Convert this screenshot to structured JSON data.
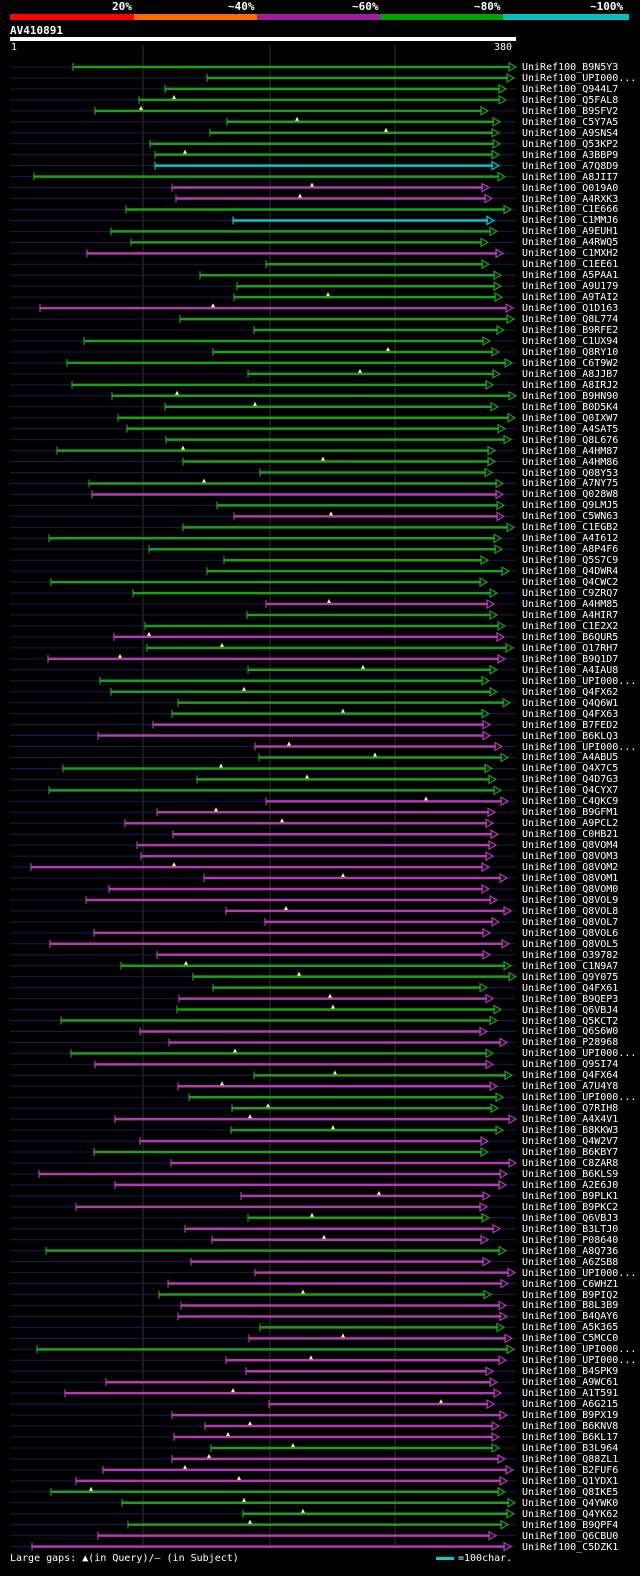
{
  "legend": {
    "labels": [
      "20%",
      "~40%",
      "~60%",
      "~80%",
      "~100%"
    ],
    "colors": [
      "#ff0000",
      "#ff6a00",
      "#9b1e9b",
      "#00a000",
      "#00c0c0"
    ]
  },
  "query": {
    "id": "AV410891",
    "start_label": "1",
    "end_label": "380"
  },
  "footer": {
    "gaps_text": "Large gaps: ▲(in Query)/— (in Subject)",
    "scale_text": "=100char."
  },
  "colors": {
    "green": "#1e9e1e",
    "purple": "#b03cb0",
    "cyan": "#00c8d0",
    "grid": "#555555"
  },
  "hits": [
    {
      "label": "UniRef100_B9N5Y3",
      "c": "g"
    },
    {
      "label": "UniRef100_UPI000...",
      "c": "g"
    },
    {
      "label": "UniRef100_Q944L7",
      "c": "g"
    },
    {
      "label": "UniRef100_Q5FAL8",
      "c": "g"
    },
    {
      "label": "UniRef100_B9SFV2",
      "c": "g"
    },
    {
      "label": "UniRef100_C5Y7A5",
      "c": "g"
    },
    {
      "label": "UniRef100_A9SNS4",
      "c": "g"
    },
    {
      "label": "UniRef100_Q53KP2",
      "c": "g"
    },
    {
      "label": "UniRef100_A3BBP9",
      "c": "g"
    },
    {
      "label": "UniRef100_A7Q8D9",
      "c": "c"
    },
    {
      "label": "UniRef100_A8JII7",
      "c": "g"
    },
    {
      "label": "UniRef100_Q019A0",
      "c": "p"
    },
    {
      "label": "UniRef100_A4RXK3",
      "c": "p"
    },
    {
      "label": "UniRef100_C1E666",
      "c": "g"
    },
    {
      "label": "UniRef100_C1MMJ6",
      "c": "c"
    },
    {
      "label": "UniRef100_A9EUH1",
      "c": "g"
    },
    {
      "label": "UniRef100_A4RWQ5",
      "c": "g"
    },
    {
      "label": "UniRef100_C1MXH2",
      "c": "p"
    },
    {
      "label": "UniRef100_C1EE61",
      "c": "g"
    },
    {
      "label": "UniRef100_A5PAA1",
      "c": "g"
    },
    {
      "label": "UniRef100_A9U179",
      "c": "g"
    },
    {
      "label": "UniRef100_A9TAI2",
      "c": "g"
    },
    {
      "label": "UniRef100_Q1D163",
      "c": "p"
    },
    {
      "label": "UniRef100_Q8L774",
      "c": "g"
    },
    {
      "label": "UniRef100_B9RFE2",
      "c": "g"
    },
    {
      "label": "UniRef100_C1UX94",
      "c": "g"
    },
    {
      "label": "UniRef100_Q8RY10",
      "c": "g"
    },
    {
      "label": "UniRef100_C6T9W2",
      "c": "g"
    },
    {
      "label": "UniRef100_A8JJB7",
      "c": "g"
    },
    {
      "label": "UniRef100_A8IRJ2",
      "c": "g"
    },
    {
      "label": "UniRef100_B9HN90",
      "c": "g"
    },
    {
      "label": "UniRef100_B0D5K4",
      "c": "g"
    },
    {
      "label": "UniRef100_Q0IXW7",
      "c": "g"
    },
    {
      "label": "UniRef100_A4SAT5",
      "c": "g"
    },
    {
      "label": "UniRef100_Q8L676",
      "c": "g"
    },
    {
      "label": "UniRef100_A4HM87",
      "c": "g"
    },
    {
      "label": "UniRef100_A4HM86",
      "c": "g"
    },
    {
      "label": "UniRef100_Q08Y53",
      "c": "g"
    },
    {
      "label": "UniRef100_A7NY75",
      "c": "g"
    },
    {
      "label": "UniRef100_Q028W8",
      "c": "p"
    },
    {
      "label": "UniRef100_Q9LMJ5",
      "c": "g"
    },
    {
      "label": "UniRef100_C5WN63",
      "c": "p"
    },
    {
      "label": "UniRef100_C1EGB2",
      "c": "g"
    },
    {
      "label": "UniRef100_A4I612",
      "c": "g"
    },
    {
      "label": "UniRef100_A8P4F6",
      "c": "g"
    },
    {
      "label": "UniRef100_Q5S7C9",
      "c": "g"
    },
    {
      "label": "UniRef100_Q4DWR4",
      "c": "g"
    },
    {
      "label": "UniRef100_Q4CWC2",
      "c": "g"
    },
    {
      "label": "UniRef100_C9ZRQ7",
      "c": "g"
    },
    {
      "label": "UniRef100_A4HM85",
      "c": "p"
    },
    {
      "label": "UniRef100_A4HIR7",
      "c": "g"
    },
    {
      "label": "UniRef100_C1E2X2",
      "c": "g"
    },
    {
      "label": "UniRef100_B6QUR5",
      "c": "p"
    },
    {
      "label": "UniRef100_Q17RH7",
      "c": "g"
    },
    {
      "label": "UniRef100_B9Q1D7",
      "c": "p"
    },
    {
      "label": "UniRef100_A4IAU8",
      "c": "g"
    },
    {
      "label": "UniRef100_UPI000...",
      "c": "g"
    },
    {
      "label": "UniRef100_Q4FX62",
      "c": "g"
    },
    {
      "label": "UniRef100_Q4Q6W1",
      "c": "g"
    },
    {
      "label": "UniRef100_Q4FX63",
      "c": "g"
    },
    {
      "label": "UniRef100_B7FED2",
      "c": "p"
    },
    {
      "label": "UniRef100_B6KLQ3",
      "c": "p"
    },
    {
      "label": "UniRef100_UPI000...",
      "c": "p"
    },
    {
      "label": "UniRef100_A4ABU5",
      "c": "g"
    },
    {
      "label": "UniRef100_Q4X7C5",
      "c": "g"
    },
    {
      "label": "UniRef100_Q4D7G3",
      "c": "g"
    },
    {
      "label": "UniRef100_Q4CYX7",
      "c": "g"
    },
    {
      "label": "UniRef100_C4QKC9",
      "c": "p"
    },
    {
      "label": "UniRef100_B9GFM1",
      "c": "p"
    },
    {
      "label": "UniRef100_A9PCL2",
      "c": "p"
    },
    {
      "label": "UniRef100_C0HB21",
      "c": "p"
    },
    {
      "label": "UniRef100_Q8VOM4",
      "c": "p"
    },
    {
      "label": "UniRef100_Q8VOM3",
      "c": "p"
    },
    {
      "label": "UniRef100_Q8VOM2",
      "c": "p"
    },
    {
      "label": "UniRef100_Q8VOM1",
      "c": "p"
    },
    {
      "label": "UniRef100_Q8VOM0",
      "c": "p"
    },
    {
      "label": "UniRef100_Q8VOL9",
      "c": "p"
    },
    {
      "label": "UniRef100_Q8VOL8",
      "c": "p"
    },
    {
      "label": "UniRef100_Q8VOL7",
      "c": "p"
    },
    {
      "label": "UniRef100_Q8VOL6",
      "c": "p"
    },
    {
      "label": "UniRef100_Q8VOL5",
      "c": "p"
    },
    {
      "label": "UniRef100_O39782",
      "c": "p"
    },
    {
      "label": "UniRef100_C1N9A7",
      "c": "g"
    },
    {
      "label": "UniRef100_Q9Y075",
      "c": "g"
    },
    {
      "label": "UniRef100_Q4FX61",
      "c": "g"
    },
    {
      "label": "UniRef100_B9QEP3",
      "c": "p"
    },
    {
      "label": "UniRef100_Q6VBJ4",
      "c": "g"
    },
    {
      "label": "UniRef100_Q5KCT2",
      "c": "g"
    },
    {
      "label": "UniRef100_Q6S6W0",
      "c": "p"
    },
    {
      "label": "UniRef100_P28968",
      "c": "p"
    },
    {
      "label": "UniRef100_UPI000...",
      "c": "g"
    },
    {
      "label": "UniRef100_Q9SI74",
      "c": "p"
    },
    {
      "label": "UniRef100_Q4FX64",
      "c": "g"
    },
    {
      "label": "UniRef100_A7U4Y8",
      "c": "p"
    },
    {
      "label": "UniRef100_UPI000...",
      "c": "g"
    },
    {
      "label": "UniRef100_Q7RIH8",
      "c": "g"
    },
    {
      "label": "UniRef100_A4X4V1",
      "c": "p"
    },
    {
      "label": "UniRef100_B8KKW3",
      "c": "g"
    },
    {
      "label": "UniRef100_Q4W2V7",
      "c": "p"
    },
    {
      "label": "UniRef100_B6KBY7",
      "c": "g"
    },
    {
      "label": "UniRef100_C8ZAR8",
      "c": "p"
    },
    {
      "label": "UniRef100_B6KLS9",
      "c": "p"
    },
    {
      "label": "UniRef100_A2E6J0",
      "c": "p"
    },
    {
      "label": "UniRef100_B9PLK1",
      "c": "p"
    },
    {
      "label": "UniRef100_B9PKC2",
      "c": "p"
    },
    {
      "label": "UniRef100_Q6VBJ3",
      "c": "g"
    },
    {
      "label": "UniRef100_B3LTJ0",
      "c": "p"
    },
    {
      "label": "UniRef100_P08640",
      "c": "p"
    },
    {
      "label": "UniRef100_A8Q736",
      "c": "g"
    },
    {
      "label": "UniRef100_A6ZSB8",
      "c": "p"
    },
    {
      "label": "UniRef100_UPI000...",
      "c": "p"
    },
    {
      "label": "UniRef100_C6WHZ1",
      "c": "p"
    },
    {
      "label": "UniRef100_B9PIQ2",
      "c": "g"
    },
    {
      "label": "UniRef100_B8L3B9",
      "c": "p"
    },
    {
      "label": "UniRef100_B4QAY6",
      "c": "p"
    },
    {
      "label": "UniRef100_A5K365",
      "c": "g"
    },
    {
      "label": "UniRef100_C5MCC0",
      "c": "p"
    },
    {
      "label": "UniRef100_UPI000...",
      "c": "g"
    },
    {
      "label": "UniRef100_UPI000...",
      "c": "p"
    },
    {
      "label": "UniRef100_B4SPK9",
      "c": "p"
    },
    {
      "label": "UniRef100_A9WC61",
      "c": "p"
    },
    {
      "label": "UniRef100_A1T591",
      "c": "p"
    },
    {
      "label": "UniRef100_A6G215",
      "c": "p"
    },
    {
      "label": "UniRef100_B9PX19",
      "c": "p"
    },
    {
      "label": "UniRef100_B6KNV8",
      "c": "p"
    },
    {
      "label": "UniRef100_B6KL17",
      "c": "p"
    },
    {
      "label": "UniRef100_B3L964",
      "c": "g"
    },
    {
      "label": "UniRef100_Q88ZL1",
      "c": "p"
    },
    {
      "label": "UniRef100_B2FUF6",
      "c": "p"
    },
    {
      "label": "UniRef100_Q1YDX1",
      "c": "p"
    },
    {
      "label": "UniRef100_Q8IKE5",
      "c": "g"
    },
    {
      "label": "UniRef100_Q4YWK0",
      "c": "g"
    },
    {
      "label": "UniRef100_Q4YK62",
      "c": "g"
    },
    {
      "label": "UniRef100_B9QPF4",
      "c": "g"
    },
    {
      "label": "UniRef100_Q6CBU0",
      "c": "p"
    },
    {
      "label": "UniRef100_C5DZK1",
      "c": "p"
    }
  ]
}
